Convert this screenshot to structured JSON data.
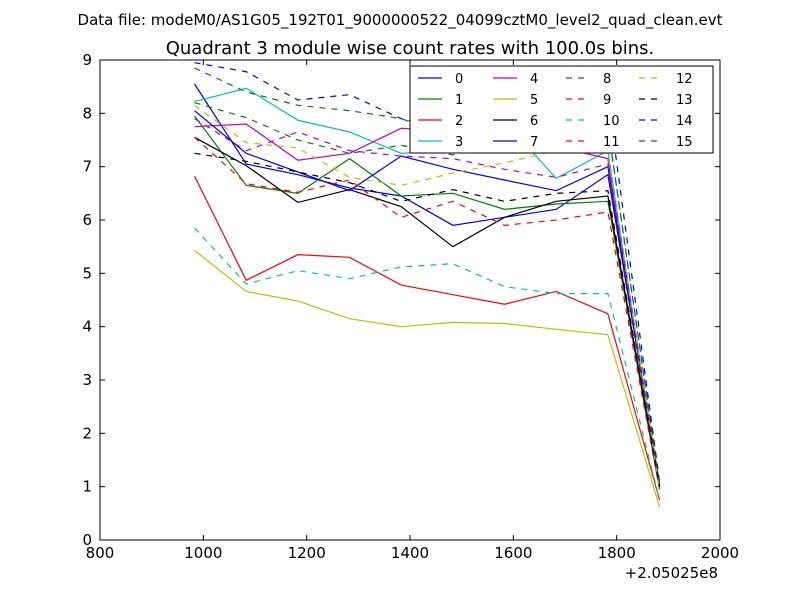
{
  "chart_data": {
    "type": "line",
    "suptitle": "Data file: modeM0/AS1G05_192T01_9000000522_04099cztM0_level2_quad_clean.evt",
    "title": "Quadrant 3 module wise count rates with 100.0s bins.",
    "xlabel": "",
    "ylabel": "",
    "x_offset_label": "+2.05025e8",
    "xlim": [
      800,
      2000
    ],
    "ylim": [
      0,
      9
    ],
    "xticks": [
      800,
      1000,
      1200,
      1400,
      1600,
      1800,
      2000
    ],
    "yticks": [
      0,
      1,
      2,
      3,
      4,
      5,
      6,
      7,
      8,
      9
    ],
    "x": [
      983,
      1083,
      1183,
      1283,
      1383,
      1483,
      1583,
      1683,
      1783,
      1883
    ],
    "legend_position": "top-right",
    "series": [
      {
        "name": "0",
        "color": "#0000ff",
        "dash": "solid",
        "values": [
          8.55,
          7.05,
          6.85,
          6.6,
          6.45,
          5.9,
          6.05,
          6.2,
          6.85,
          1.05
        ]
      },
      {
        "name": "1",
        "color": "#008000",
        "dash": "solid",
        "values": [
          7.95,
          6.65,
          6.5,
          7.15,
          6.45,
          6.5,
          6.2,
          6.3,
          6.35,
          0.95
        ]
      },
      {
        "name": "2",
        "color": "#ff0000",
        "dash": "solid",
        "values": [
          6.82,
          4.87,
          5.35,
          5.3,
          4.78,
          4.6,
          4.42,
          4.66,
          4.24,
          0.75
        ]
      },
      {
        "name": "3",
        "color": "#00bfbf",
        "dash": "solid",
        "values": [
          8.22,
          8.47,
          7.87,
          7.65,
          7.25,
          7.3,
          7.85,
          6.78,
          7.3,
          0.95
        ]
      },
      {
        "name": "4",
        "color": "#bf00bf",
        "dash": "solid",
        "values": [
          7.75,
          7.8,
          7.12,
          7.25,
          7.72,
          7.65,
          7.4,
          7.38,
          7.15,
          1.0
        ]
      },
      {
        "name": "5",
        "color": "#bfbf00",
        "dash": "solid",
        "values": [
          5.43,
          4.66,
          4.48,
          4.15,
          4.0,
          4.08,
          4.06,
          3.95,
          3.85,
          0.62
        ]
      },
      {
        "name": "6",
        "color": "#000000",
        "dash": "solid",
        "values": [
          7.55,
          7.02,
          6.33,
          6.57,
          6.25,
          5.5,
          6.05,
          6.35,
          6.45,
          1.0
        ]
      },
      {
        "name": "7",
        "color": "#0000ff",
        "dash": "solid",
        "values": [
          8.05,
          7.25,
          6.9,
          6.55,
          7.2,
          6.95,
          6.75,
          6.55,
          7.0,
          1.0
        ]
      },
      {
        "name": "8",
        "color": "#008000",
        "dash": "dashed",
        "values": [
          8.2,
          7.92,
          7.5,
          7.25,
          7.4,
          7.22,
          7.6,
          7.85,
          7.75,
          1.05
        ]
      },
      {
        "name": "9",
        "color": "#ff0000",
        "dash": "dashed",
        "values": [
          7.55,
          6.68,
          6.52,
          6.75,
          6.05,
          6.35,
          5.9,
          6.0,
          6.15,
          0.95
        ]
      },
      {
        "name": "10",
        "color": "#00bfbf",
        "dash": "dashed",
        "values": [
          5.85,
          4.8,
          5.05,
          4.9,
          5.12,
          5.18,
          4.75,
          4.62,
          4.62,
          0.75
        ]
      },
      {
        "name": "11",
        "color": "#bf00bf",
        "dash": "dashed",
        "values": [
          7.9,
          7.3,
          7.65,
          7.3,
          7.2,
          7.15,
          6.95,
          6.8,
          7.05,
          1.0
        ]
      },
      {
        "name": "12",
        "color": "#bfbf00",
        "dash": "dashed",
        "values": [
          8.15,
          7.45,
          7.35,
          6.8,
          6.65,
          6.88,
          7.07,
          7.3,
          7.25,
          0.95
        ]
      },
      {
        "name": "13",
        "color": "#000000",
        "dash": "dashed",
        "values": [
          7.25,
          7.1,
          6.9,
          6.7,
          6.35,
          6.57,
          6.35,
          6.5,
          6.55,
          1.0
        ]
      },
      {
        "name": "14",
        "color": "#0000ff",
        "dash": "dashed",
        "values": [
          8.95,
          8.78,
          8.25,
          8.35,
          7.9,
          7.65,
          7.7,
          8.15,
          8.3,
          1.1
        ]
      },
      {
        "name": "15",
        "color": "#008000",
        "dash": "dashed",
        "values": [
          8.85,
          8.4,
          8.15,
          8.05,
          7.9,
          7.55,
          7.45,
          7.65,
          7.75,
          1.05
        ]
      }
    ]
  }
}
